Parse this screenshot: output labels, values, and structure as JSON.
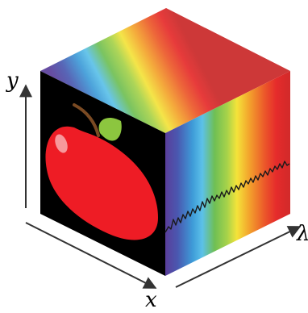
{
  "diagram": {
    "axes": {
      "y_label": "y",
      "x_label": "x",
      "lambda_label": "λ"
    },
    "icons": {
      "front_face": "apple-icon",
      "spectrum_faces": "rainbow-gradient",
      "signal": "spectrum-signal-trace"
    },
    "colors": {
      "front_background": "#000000",
      "apple_red": "#EE1C25",
      "leaf_green": "#8CC63F",
      "stem_brown": "#7A4A23",
      "axis": "#333333",
      "spectrum": [
        "#5A3E9B",
        "#3E7FC1",
        "#55B5E6",
        "#77C14A",
        "#F3E23A",
        "#F0922D",
        "#E52B2B",
        "#D42A2A"
      ]
    }
  }
}
